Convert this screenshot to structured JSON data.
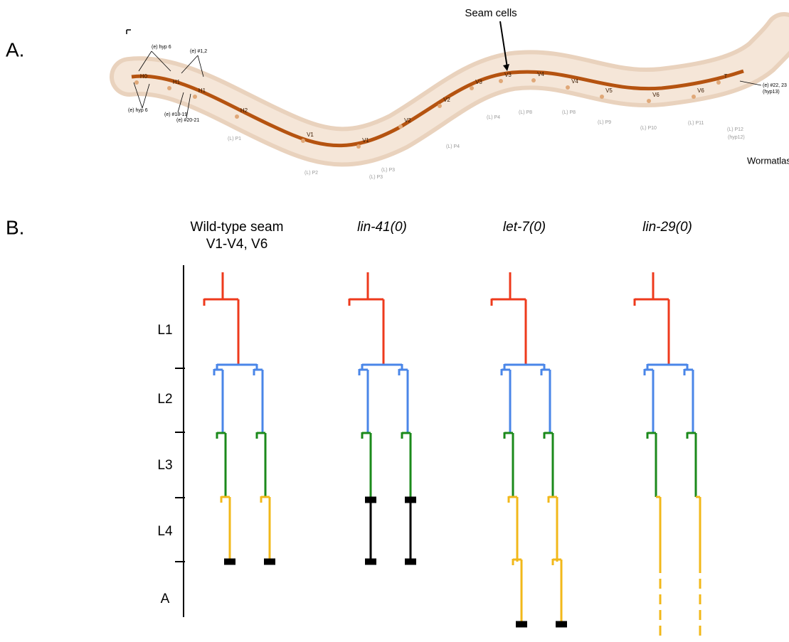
{
  "panel_a": {
    "label": "A.",
    "arrow_label": "Seam cells",
    "credit": "Wormatlas",
    "cell_labels": [
      "H0",
      "H1",
      "H1",
      "H2",
      "V1",
      "V1",
      "V2",
      "V2",
      "V3",
      "V3",
      "V4",
      "V4",
      "V5",
      "V6",
      "V6",
      "T"
    ],
    "p_labels": [
      "(L) P1",
      "(L) P2",
      "(L) P3",
      "(L) P3",
      "(L) P4",
      "(L) P4",
      "(L) P8",
      "(L) P8",
      "(L) P9",
      "(L) P10",
      "(L) P11",
      "(L) P12",
      "(hyp12)"
    ],
    "annotations": [
      "(e) hyp 6",
      "(e) #1,2",
      "(e) hyp 6",
      "(e) #18-19",
      "(e) #20-21",
      "(e) #22, 23",
      "(hyp13)"
    ]
  },
  "panel_b": {
    "label": "B.",
    "columns": [
      [
        "Wild-type seam",
        "V1-V4, V6"
      ],
      [
        "lin-41(0)"
      ],
      [
        "let-7(0)"
      ],
      [
        "lin-29(0)"
      ]
    ],
    "stages": [
      "L1",
      "L2",
      "L3",
      "L4",
      "A"
    ]
  }
}
